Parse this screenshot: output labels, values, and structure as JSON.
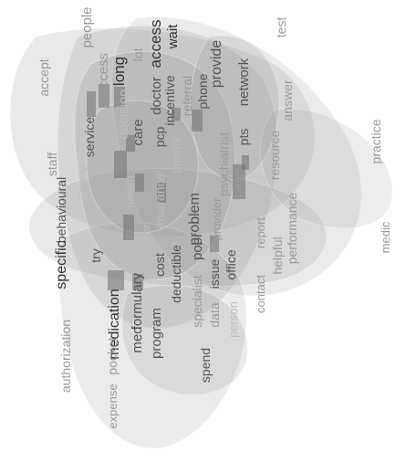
{
  "colors": {
    "background": "#ffffff",
    "blob_fill": "#9a9a9a",
    "word_dark": "#333333",
    "word_mid": "#555555",
    "word_light": "#999999",
    "word_faint": "#bdbdbd"
  },
  "words": [
    {
      "t": "people",
      "tone": "word_light"
    },
    {
      "t": "access",
      "tone": "word_dark"
    },
    {
      "t": "wait",
      "tone": "word_dark"
    },
    {
      "t": "test",
      "tone": "word_light"
    },
    {
      "t": "accept",
      "tone": "word_light"
    },
    {
      "t": "success",
      "tone": "word_light"
    },
    {
      "t": "long",
      "tone": "word_dark"
    },
    {
      "t": "lot",
      "tone": "word_light"
    },
    {
      "t": "doctor",
      "tone": "word_mid"
    },
    {
      "t": "provide",
      "tone": "word_mid"
    },
    {
      "t": "network",
      "tone": "word_mid"
    },
    {
      "t": "service",
      "tone": "word_mid"
    },
    {
      "t": "decision",
      "tone": "word_faint"
    },
    {
      "t": "care",
      "tone": "word_mid"
    },
    {
      "t": "pcp",
      "tone": "word_mid"
    },
    {
      "t": "incentive",
      "tone": "word_mid"
    },
    {
      "t": "referral",
      "tone": "word_light"
    },
    {
      "t": "phone",
      "tone": "word_mid"
    },
    {
      "t": "answer",
      "tone": "word_light"
    },
    {
      "t": "staff",
      "tone": "word_light"
    },
    {
      "t": "behavioural",
      "tone": "word_mid"
    },
    {
      "t": "insurance",
      "tone": "word_faint"
    },
    {
      "t": "priority",
      "tone": "word_faint"
    },
    {
      "t": "psychiatrist",
      "tone": "word_light"
    },
    {
      "t": "pts",
      "tone": "word_mid"
    },
    {
      "t": "resource",
      "tone": "word_light"
    },
    {
      "t": "practice",
      "tone": "word_light"
    },
    {
      "t": "timely",
      "tone": "word_faint"
    },
    {
      "t": "health",
      "tone": "word_faint"
    },
    {
      "t": "poor",
      "tone": "word_mid"
    },
    {
      "t": "problem",
      "tone": "word_mid"
    },
    {
      "t": "provider",
      "tone": "word_light"
    },
    {
      "t": "pay",
      "tone": "word_light"
    },
    {
      "t": "performance",
      "tone": "word_light"
    },
    {
      "t": "specific",
      "tone": "word_dark"
    },
    {
      "t": "try",
      "tone": "word_mid"
    },
    {
      "t": "medication",
      "tone": "word_dark"
    },
    {
      "t": "formulary",
      "tone": "word_mid"
    },
    {
      "t": "information",
      "tone": "word_faint"
    },
    {
      "t": "cost",
      "tone": "word_mid"
    },
    {
      "t": "deductible",
      "tone": "word_mid"
    },
    {
      "t": "specialist",
      "tone": "word_light"
    },
    {
      "t": "issue",
      "tone": "word_mid"
    },
    {
      "t": "office",
      "tone": "word_mid"
    },
    {
      "t": "report",
      "tone": "word_light"
    },
    {
      "t": "helpful",
      "tone": "word_light"
    },
    {
      "t": "medic",
      "tone": "word_light"
    },
    {
      "t": "authorization",
      "tone": "word_light"
    },
    {
      "t": "med",
      "tone": "word_mid"
    },
    {
      "t": "program",
      "tone": "word_mid"
    },
    {
      "t": "data",
      "tone": "word_light"
    },
    {
      "t": "person",
      "tone": "word_faint"
    },
    {
      "t": "contact",
      "tone": "word_light"
    },
    {
      "t": "spend",
      "tone": "word_mid"
    },
    {
      "t": "expense",
      "tone": "word_light"
    },
    {
      "t": "pocket",
      "tone": "word_light"
    }
  ]
}
